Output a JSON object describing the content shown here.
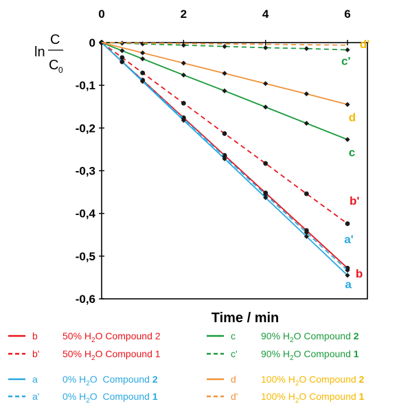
{
  "chart_data": {
    "type": "line",
    "xlabel": "Time / min",
    "ylabel_main": "ln",
    "ylabel_num": "C",
    "ylabel_den": "C",
    "ylabel_den_sub": "0",
    "xlim": [
      0,
      6
    ],
    "ylim": [
      -0.6,
      0
    ],
    "x_ticks": [
      "0",
      "2",
      "4",
      "6"
    ],
    "y_ticks": [
      "0",
      "-0,1",
      "-0,2",
      "-0,3",
      "-0,4",
      "-0,5",
      "-0,6"
    ],
    "grid": false,
    "series": [
      {
        "name": "b",
        "color": "#e8141b",
        "dash": false,
        "marker": "circle",
        "x": [
          0,
          0.5,
          1,
          2,
          3,
          4,
          5,
          6
        ],
        "y": [
          0,
          -0.045,
          -0.088,
          -0.176,
          -0.264,
          -0.352,
          -0.44,
          -0.528
        ]
      },
      {
        "name": "b'",
        "color": "#e8141b",
        "dash": true,
        "marker": "circle",
        "x": [
          0,
          0.5,
          1,
          2,
          3,
          4,
          5,
          6
        ],
        "y": [
          0,
          -0.035,
          -0.071,
          -0.142,
          -0.213,
          -0.283,
          -0.354,
          -0.424
        ]
      },
      {
        "name": "c",
        "color": "#1a9b3c",
        "dash": false,
        "marker": "diamond",
        "x": [
          0,
          0.5,
          1,
          2,
          3,
          4,
          5,
          6
        ],
        "y": [
          0,
          -0.019,
          -0.038,
          -0.076,
          -0.113,
          -0.151,
          -0.189,
          -0.227
        ]
      },
      {
        "name": "c'",
        "color": "#1a9b3c",
        "dash": true,
        "marker": "diamond",
        "x": [
          0,
          0.5,
          1,
          2,
          3,
          4,
          5,
          6
        ],
        "y": [
          0,
          -0.0015,
          -0.003,
          -0.006,
          -0.009,
          -0.012,
          -0.014,
          -0.017
        ]
      },
      {
        "name": "a",
        "color": "#2aa8e0",
        "dash": false,
        "marker": "diamond",
        "x": [
          0,
          0.5,
          1,
          2,
          3,
          4,
          5,
          6
        ],
        "y": [
          0,
          -0.045,
          -0.091,
          -0.182,
          -0.272,
          -0.363,
          -0.454,
          -0.545
        ]
      },
      {
        "name": "a'",
        "color": "#2aa8e0",
        "dash": true,
        "marker": "diamond",
        "x": [
          0,
          0.5,
          1,
          2,
          3,
          4,
          5,
          6
        ],
        "y": [
          0,
          -0.044,
          -0.089,
          -0.178,
          -0.267,
          -0.356,
          -0.445,
          -0.533
        ]
      },
      {
        "name": "d",
        "color": "#f0923a",
        "dash": false,
        "marker": "diamond",
        "x": [
          0,
          1,
          2,
          3,
          4,
          5,
          6
        ],
        "y": [
          0,
          -0.024,
          -0.048,
          -0.072,
          -0.096,
          -0.12,
          -0.145
        ]
      },
      {
        "name": "d'",
        "color": "#f0923a",
        "dash": true,
        "marker": "none",
        "x": [
          0,
          6
        ],
        "y": [
          0,
          -0.006
        ]
      }
    ],
    "end_labels": [
      {
        "text": "d'",
        "color": "#f5b800",
        "xd": 6.3,
        "yd": -0.013
      },
      {
        "text": "c'",
        "color": "#1a9b3c",
        "xd": 5.85,
        "yd": -0.052
      },
      {
        "text": "d",
        "color": "#f5b800",
        "xd": 6.03,
        "yd": -0.184
      },
      {
        "text": "c",
        "color": "#1a9b3c",
        "xd": 6.03,
        "yd": -0.266
      },
      {
        "text": "b'",
        "color": "#e8141b",
        "xd": 6.05,
        "yd": -0.38
      },
      {
        "text": "a'",
        "color": "#2aa8e0",
        "xd": 5.92,
        "yd": -0.47
      },
      {
        "text": "b",
        "color": "#e8141b",
        "xd": 6.2,
        "yd": -0.55
      },
      {
        "text": "a",
        "color": "#2aa8e0",
        "xd": 5.94,
        "yd": -0.575
      }
    ]
  },
  "legend": [
    {
      "key": "b",
      "prefix": "50% H",
      "sub": "2",
      "suffix": "O Compound ",
      "num": "2",
      "color": "#e8141b",
      "dash": false,
      "bold_num": false
    },
    {
      "key": "c",
      "prefix": "90% H",
      "sub": "2",
      "suffix": "O Compound ",
      "num": "2",
      "color": "#1a9b3c",
      "dash": false,
      "bold_num": true
    },
    {
      "key": "b'",
      "prefix": "50% H",
      "sub": "2",
      "suffix": "O Compound ",
      "num": "1",
      "color": "#e8141b",
      "dash": true,
      "bold_num": false
    },
    {
      "key": "c'",
      "prefix": "90% H",
      "sub": "2",
      "suffix": "O Compound ",
      "num": "1",
      "color": "#1a9b3c",
      "dash": true,
      "bold_num": true
    },
    {
      "key": "a",
      "prefix": "0% H",
      "sub": "2",
      "suffix": "O  Compound ",
      "num": "2",
      "color": "#2aa8e0",
      "dash": false,
      "bold_num": true
    },
    {
      "key": "d",
      "prefix": "100% H",
      "sub": "2",
      "suffix": "O Compound ",
      "num": "2",
      "color": "#f0923a",
      "text_color": "#f5b800",
      "dash": false,
      "bold_num": true
    },
    {
      "key": "a'",
      "prefix": "0% H",
      "sub": "2",
      "suffix": "O  Compound ",
      "num": "1",
      "color": "#2aa8e0",
      "dash": true,
      "bold_num": true
    },
    {
      "key": "d'",
      "prefix": "100% H",
      "sub": "2",
      "suffix": "O Compound ",
      "num": "1",
      "color": "#f0923a",
      "text_color": "#f5b800",
      "dash": true,
      "bold_num": true
    }
  ]
}
